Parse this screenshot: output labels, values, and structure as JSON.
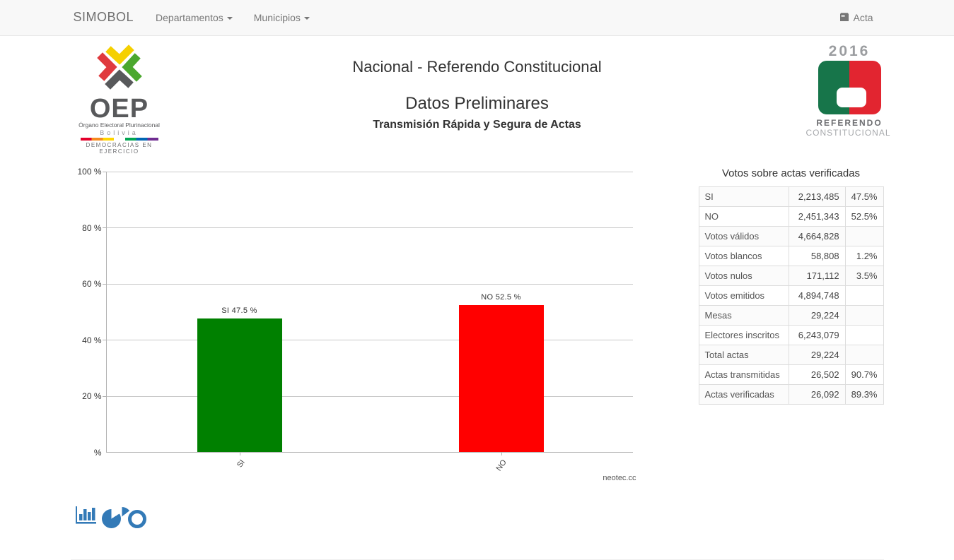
{
  "navbar": {
    "brand": "SIMOBOL",
    "menus": [
      {
        "label": "Departamentos"
      },
      {
        "label": "Municipios"
      }
    ],
    "acta_label": "Acta"
  },
  "header": {
    "title": "Nacional - Referendo Constitucional",
    "subtitle": "Datos Preliminares",
    "tagline": "Transmisión Rápida y Segura de Actas"
  },
  "oep_logo": {
    "acronym": "OEP",
    "org": "Órgano Electoral Plurinacional",
    "country": "Bolivia",
    "motto": "DEMOCRACIAS EN EJERCICIO"
  },
  "referendum_logo": {
    "year": "2016",
    "line1": "REFERENDO",
    "line2": "CONSTITUCIONAL"
  },
  "chart_data": {
    "type": "bar",
    "categories": [
      "SI",
      "NO"
    ],
    "values": [
      47.5,
      52.5
    ],
    "bar_labels": [
      "SI 47.5 %",
      "NO 52.5 %"
    ],
    "colors": [
      "#008000",
      "#ff0000"
    ],
    "ylim": [
      0,
      100
    ],
    "ytick_labels": [
      "100 %",
      "80 %",
      "60 %",
      "40 %",
      "20 %",
      "%"
    ],
    "grid": true,
    "legend": "none",
    "watermark": "neotec.cc"
  },
  "icons": {
    "acta": "inbox-icon",
    "switcher": [
      "bar-chart-icon",
      "pie-chart-icon",
      "donut-chart-icon"
    ]
  },
  "table": {
    "title": "Votos sobre actas verificadas",
    "rows": [
      {
        "label": "SI",
        "value": "2,213,485",
        "pct": "47.5%"
      },
      {
        "label": "NO",
        "value": "2,451,343",
        "pct": "52.5%"
      },
      {
        "label": "Votos válidos",
        "value": "4,664,828",
        "pct": ""
      },
      {
        "label": "Votos blancos",
        "value": "58,808",
        "pct": "1.2%"
      },
      {
        "label": "Votos nulos",
        "value": "171,112",
        "pct": "3.5%"
      },
      {
        "label": "Votos emitidos",
        "value": "4,894,748",
        "pct": ""
      },
      {
        "label": "Mesas",
        "value": "29,224",
        "pct": ""
      },
      {
        "label": "Electores inscritos",
        "value": "6,243,079",
        "pct": ""
      },
      {
        "label": "Total actas",
        "value": "29,224",
        "pct": ""
      },
      {
        "label": "Actas transmitidas",
        "value": "26,502",
        "pct": "90.7%"
      },
      {
        "label": "Actas verificadas",
        "value": "26,092",
        "pct": "89.3%"
      }
    ]
  },
  "colors": {
    "accent_blue": "#337ab7",
    "bar_si": "#008000",
    "bar_no": "#ff0000",
    "navbar_bg": "#f8f8f8"
  }
}
